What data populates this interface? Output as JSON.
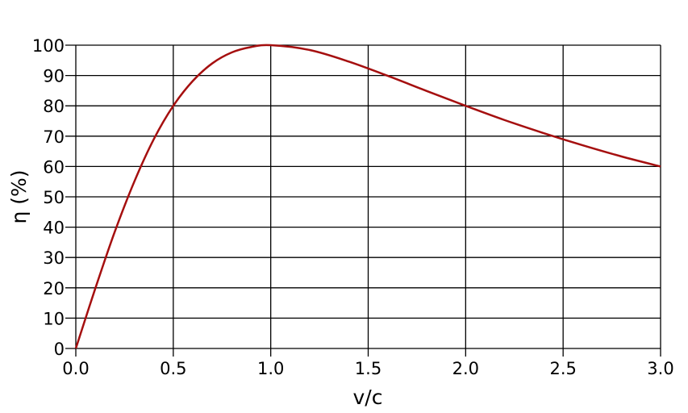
{
  "chart_data": {
    "type": "line",
    "title": "",
    "xlabel": "v/c",
    "ylabel": "η (%)",
    "xlim": [
      0,
      3
    ],
    "ylim": [
      0,
      100
    ],
    "grid": true,
    "x_ticks": [
      "0.0",
      "0.5",
      "1.0",
      "1.5",
      "2.0",
      "2.5",
      "3.0"
    ],
    "y_ticks": [
      "0",
      "10",
      "20",
      "30",
      "40",
      "50",
      "60",
      "70",
      "80",
      "90",
      "100"
    ],
    "series": [
      {
        "color": "#a50f0f",
        "x": [
          0,
          0.1,
          0.2,
          0.3,
          0.4,
          0.5,
          0.6,
          0.7,
          0.8,
          0.9,
          1.0,
          1.2,
          1.4,
          1.6,
          1.8,
          2.0,
          2.2,
          2.4,
          2.6,
          2.8,
          3.0
        ],
        "y": [
          0,
          19.8,
          38.5,
          55.0,
          69.0,
          80.0,
          88.2,
          94.0,
          97.6,
          99.4,
          100,
          98.4,
          94.6,
          89.9,
          84.9,
          80.0,
          75.3,
          71.0,
          67.0,
          63.3,
          60.0
        ]
      }
    ]
  }
}
